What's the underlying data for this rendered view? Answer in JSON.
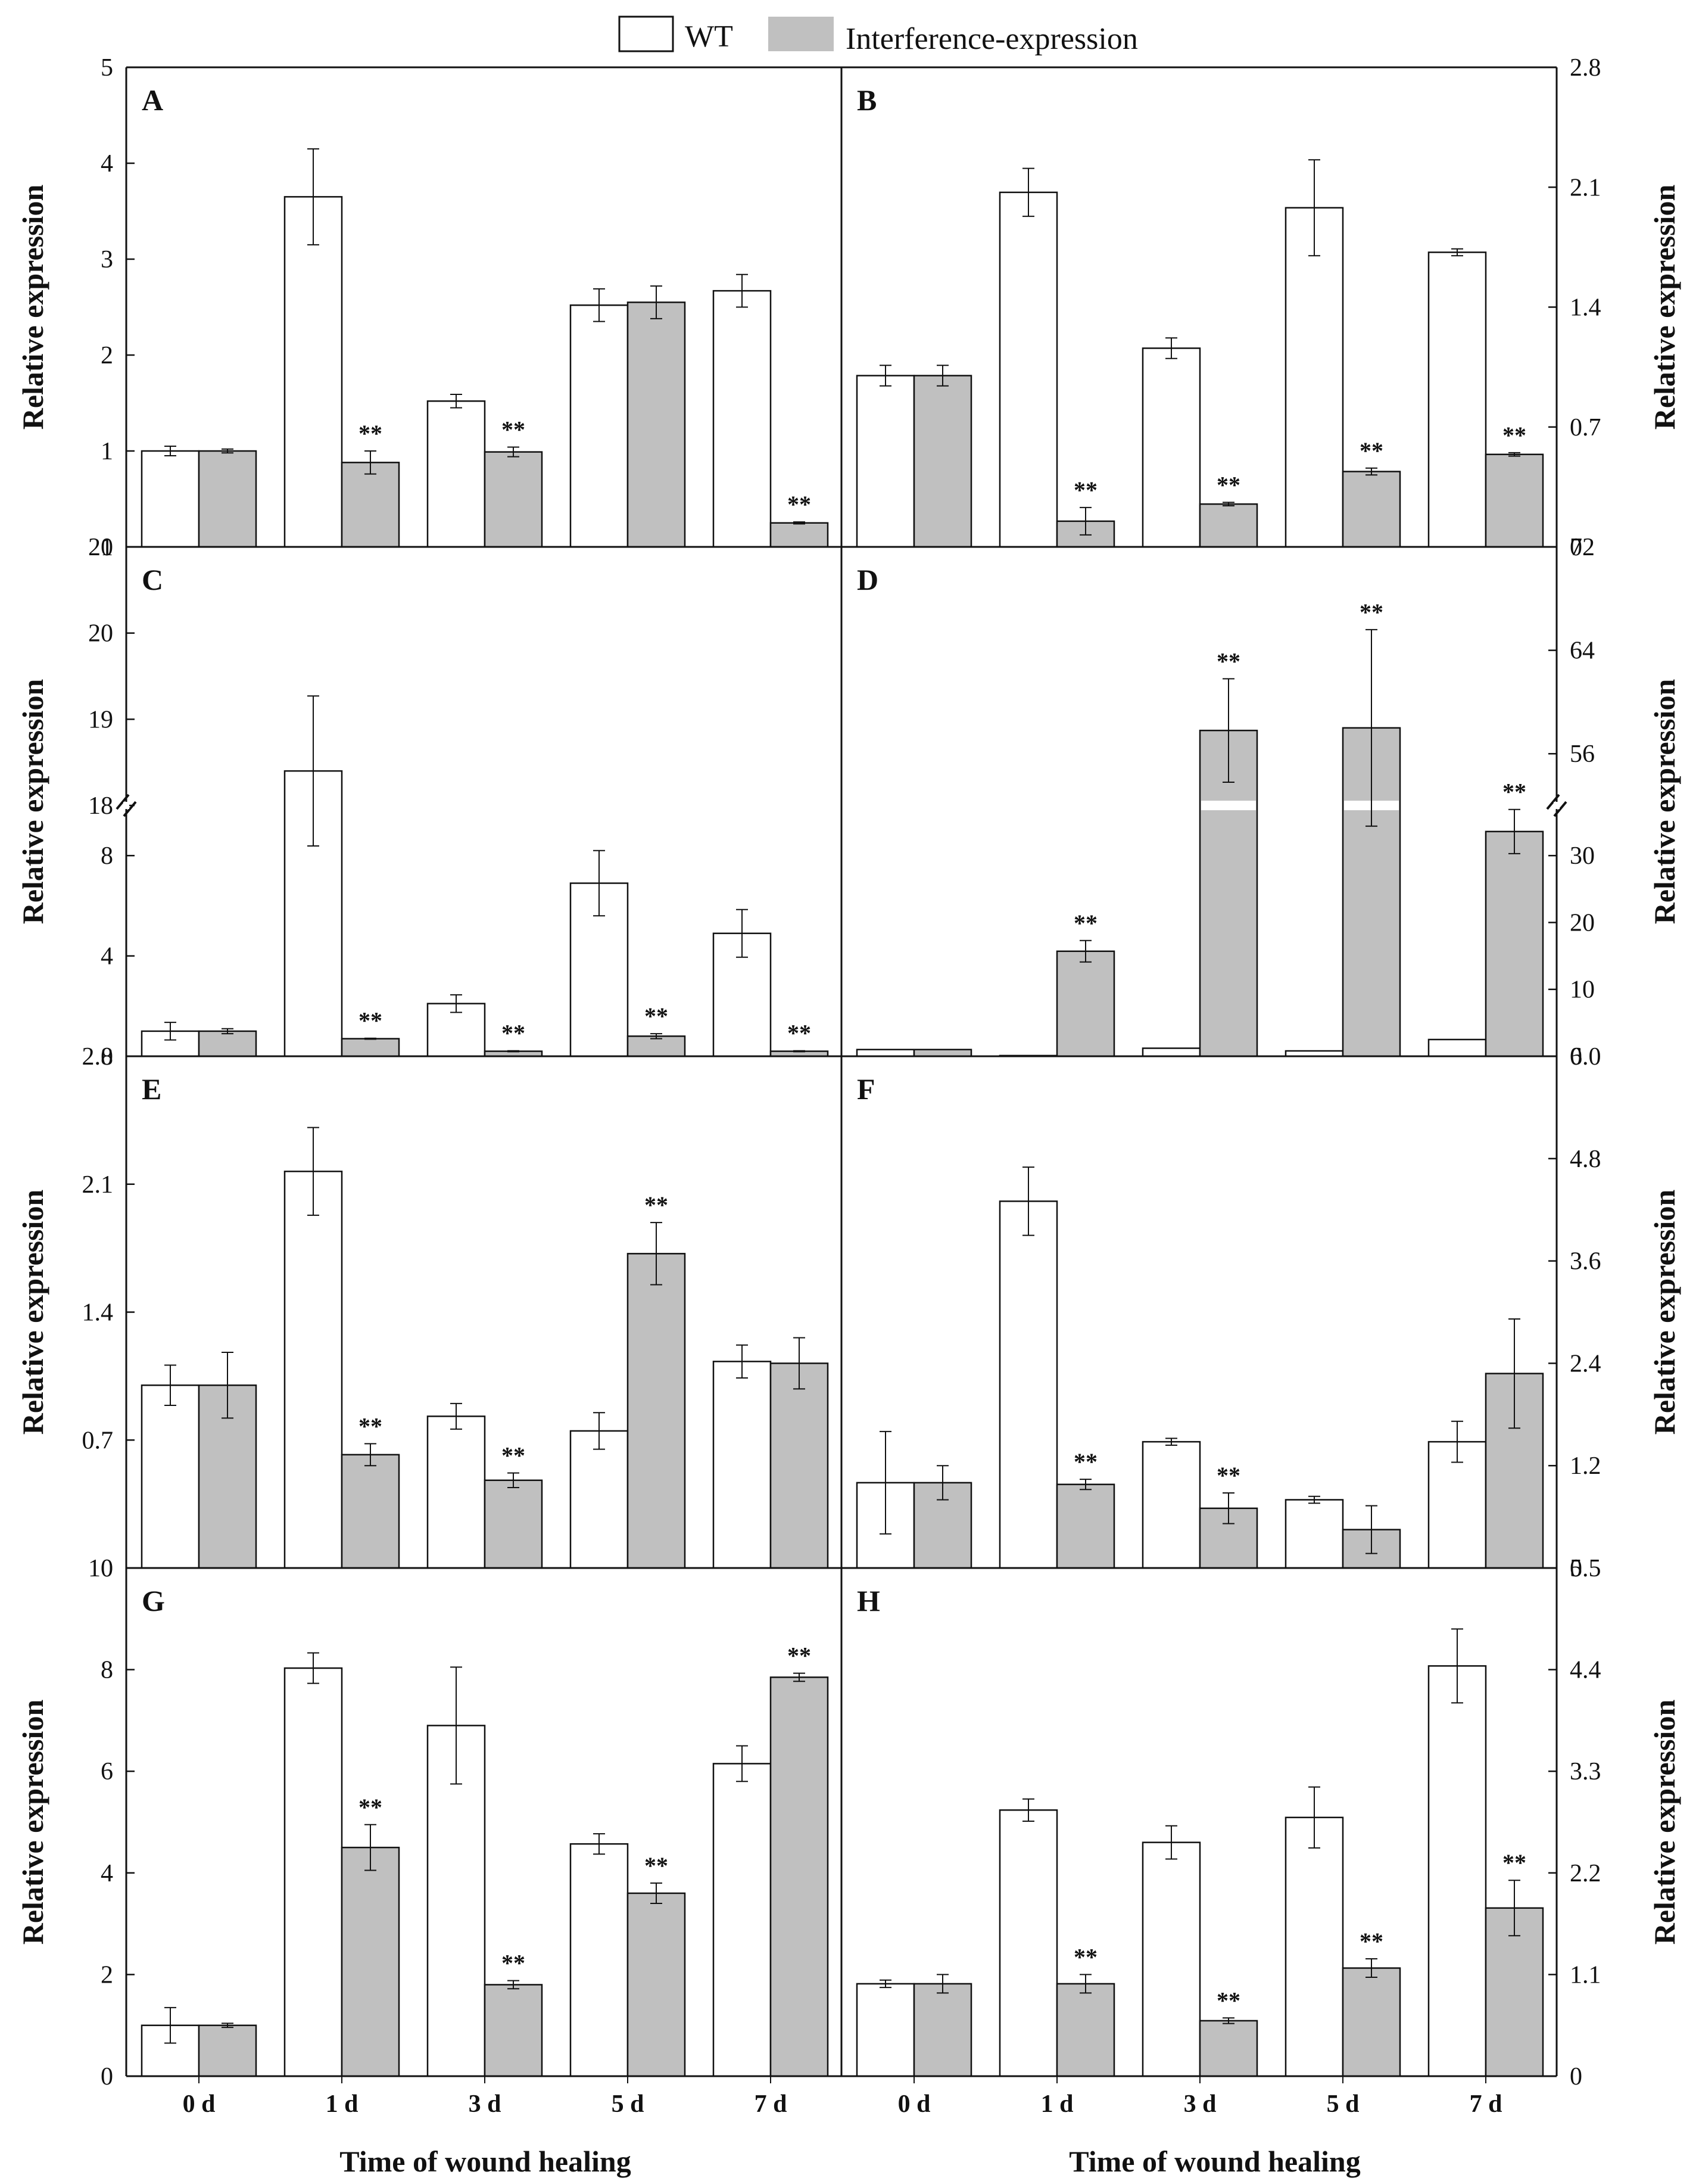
{
  "legend": {
    "wt_label": "WT",
    "ie_label": "Interference-expression",
    "wt_color": "#ffffff",
    "ie_color": "#c0c0c0"
  },
  "x_axis": {
    "categories": [
      "0 d",
      "1 d",
      "3 d",
      "5 d",
      "7 d"
    ],
    "label": "Time of wound healing"
  },
  "significance_marker": "**",
  "chart_data": [
    {
      "type": "bar",
      "panel": "A",
      "axis_side": "left",
      "ylabel": "Relative expression",
      "ylim": [
        0,
        5
      ],
      "yticks": [
        0,
        1,
        2,
        3,
        4,
        5
      ],
      "categories": [
        "0 d",
        "1 d",
        "3 d",
        "5 d",
        "7 d"
      ],
      "series": [
        {
          "name": "WT",
          "values": [
            1.0,
            3.65,
            1.52,
            2.52,
            2.67
          ],
          "errors": [
            0.05,
            0.5,
            0.07,
            0.17,
            0.17
          ],
          "sig": [
            false,
            false,
            false,
            false,
            false
          ]
        },
        {
          "name": "Interference-expression",
          "values": [
            1.0,
            0.88,
            0.99,
            2.55,
            0.25
          ],
          "errors": [
            0.02,
            0.12,
            0.05,
            0.17,
            0.01
          ],
          "sig": [
            false,
            true,
            true,
            false,
            true
          ]
        }
      ]
    },
    {
      "type": "bar",
      "panel": "B",
      "axis_side": "right",
      "ylabel": "Relative expression",
      "ylim": [
        0,
        2.8
      ],
      "yticks": [
        0,
        0.7,
        1.4,
        2.1,
        2.8
      ],
      "ytick_labels": [
        "0",
        "0.7",
        "1.4",
        "2.1",
        "2.8"
      ],
      "categories": [
        "0 d",
        "1 d",
        "3 d",
        "5 d",
        "7 d"
      ],
      "series": [
        {
          "name": "WT",
          "values": [
            1.0,
            2.07,
            1.16,
            1.98,
            1.72
          ],
          "errors": [
            0.06,
            0.14,
            0.06,
            0.28,
            0.02
          ],
          "sig": [
            false,
            false,
            false,
            false,
            false
          ]
        },
        {
          "name": "Interference-expression",
          "values": [
            1.0,
            0.15,
            0.25,
            0.44,
            0.54
          ],
          "errors": [
            0.06,
            0.08,
            0.01,
            0.02,
            0.01
          ],
          "sig": [
            false,
            true,
            true,
            true,
            true
          ]
        }
      ]
    },
    {
      "type": "bar",
      "panel": "C",
      "axis_side": "left",
      "broken_axis": true,
      "ylabel": "Relative expression",
      "ylim_lower": [
        0,
        10
      ],
      "yticks_lower": [
        0,
        4,
        8
      ],
      "ylim_upper": [
        18,
        21
      ],
      "yticks_upper": [
        18,
        19,
        20,
        21
      ],
      "categories": [
        "0 d",
        "1 d",
        "3 d",
        "5 d",
        "7 d"
      ],
      "series": [
        {
          "name": "WT",
          "values": [
            1.0,
            18.4,
            2.1,
            6.9,
            4.9
          ],
          "errors": [
            0.35,
            0.87,
            0.35,
            1.3,
            0.95
          ],
          "sig": [
            false,
            false,
            false,
            false,
            false
          ]
        },
        {
          "name": "Interference-expression",
          "values": [
            1.0,
            0.7,
            0.2,
            0.8,
            0.2
          ],
          "errors": [
            0.1,
            0.02,
            0.02,
            0.1,
            0.02
          ],
          "sig": [
            false,
            true,
            true,
            true,
            true
          ]
        }
      ]
    },
    {
      "type": "bar",
      "panel": "D",
      "axis_side": "right",
      "broken_axis": true,
      "ylabel": "Relative expression",
      "ylim_lower": [
        0,
        37.5
      ],
      "yticks_lower": [
        0,
        10,
        20,
        30
      ],
      "ylim_upper": [
        52,
        72
      ],
      "yticks_upper": [
        56,
        64,
        72
      ],
      "categories": [
        "0 d",
        "1 d",
        "3 d",
        "5 d",
        "7 d"
      ],
      "series": [
        {
          "name": "WT",
          "values": [
            1.0,
            0.1,
            1.2,
            0.8,
            2.5
          ],
          "errors": [
            0,
            0,
            0,
            0,
            0
          ],
          "sig": [
            false,
            false,
            false,
            false,
            false
          ]
        },
        {
          "name": "Interference-expression",
          "values": [
            1.0,
            15.7,
            57.8,
            58.0,
            33.6
          ],
          "errors": [
            0,
            1.6,
            4.0,
            7.6,
            3.3
          ],
          "sig": [
            false,
            true,
            true,
            true,
            true
          ]
        }
      ]
    },
    {
      "type": "bar",
      "panel": "E",
      "axis_side": "left",
      "ylabel": "Relative expression",
      "ylim": [
        0,
        2.8
      ],
      "yticks": [
        0,
        0.7,
        1.4,
        2.1,
        2.8
      ],
      "ytick_labels": [
        "0",
        "0.7",
        "1.4",
        "2.1",
        "2.8"
      ],
      "categories": [
        "0 d",
        "1 d",
        "3 d",
        "5 d",
        "7 d"
      ],
      "series": [
        {
          "name": "WT",
          "values": [
            1.0,
            2.17,
            0.83,
            0.75,
            1.13
          ],
          "errors": [
            0.11,
            0.24,
            0.07,
            0.1,
            0.09
          ],
          "sig": [
            false,
            false,
            false,
            false,
            false
          ]
        },
        {
          "name": "Interference-expression",
          "values": [
            1.0,
            0.62,
            0.48,
            1.72,
            1.12
          ],
          "errors": [
            0.18,
            0.06,
            0.04,
            0.17,
            0.14
          ],
          "sig": [
            false,
            true,
            true,
            true,
            false
          ]
        }
      ]
    },
    {
      "type": "bar",
      "panel": "F",
      "axis_side": "right",
      "ylabel": "Relative expression",
      "ylim": [
        0,
        6.0
      ],
      "yticks": [
        0,
        1.2,
        2.4,
        3.6,
        4.8,
        6.0
      ],
      "ytick_labels": [
        "0",
        "1.2",
        "2.4",
        "3.6",
        "4.8",
        "6.0"
      ],
      "categories": [
        "0 d",
        "1 d",
        "3 d",
        "5 d",
        "7 d"
      ],
      "series": [
        {
          "name": "WT",
          "values": [
            1.0,
            4.3,
            1.48,
            0.8,
            1.48
          ],
          "errors": [
            0.6,
            0.4,
            0.04,
            0.04,
            0.24
          ],
          "sig": [
            false,
            false,
            false,
            false,
            false
          ]
        },
        {
          "name": "Interference-expression",
          "values": [
            1.0,
            0.98,
            0.7,
            0.45,
            2.28
          ],
          "errors": [
            0.2,
            0.06,
            0.18,
            0.28,
            0.64
          ],
          "sig": [
            false,
            true,
            true,
            false,
            false
          ]
        }
      ]
    },
    {
      "type": "bar",
      "panel": "G",
      "axis_side": "left",
      "ylabel": "Relative expression",
      "ylim": [
        0,
        10
      ],
      "yticks": [
        0,
        2,
        4,
        6,
        8,
        10
      ],
      "categories": [
        "0 d",
        "1 d",
        "3 d",
        "5 d",
        "7 d"
      ],
      "series": [
        {
          "name": "WT",
          "values": [
            1.0,
            8.03,
            6.9,
            4.57,
            6.15
          ],
          "errors": [
            0.35,
            0.3,
            1.15,
            0.2,
            0.35
          ],
          "sig": [
            false,
            false,
            false,
            false,
            false
          ]
        },
        {
          "name": "Interference-expression",
          "values": [
            1.0,
            4.5,
            1.8,
            3.6,
            7.85
          ],
          "errors": [
            0.04,
            0.45,
            0.08,
            0.2,
            0.08
          ],
          "sig": [
            false,
            true,
            true,
            true,
            true
          ]
        }
      ]
    },
    {
      "type": "bar",
      "panel": "H",
      "axis_side": "right",
      "ylabel": "Relative expression",
      "ylim": [
        0,
        5.5
      ],
      "yticks": [
        0,
        1.1,
        2.2,
        3.3,
        4.4,
        5.5
      ],
      "ytick_labels": [
        "0",
        "1.1",
        "2.2",
        "3.3",
        "4.4",
        "5.5"
      ],
      "categories": [
        "0 d",
        "1 d",
        "3 d",
        "5 d",
        "7 d"
      ],
      "series": [
        {
          "name": "WT",
          "values": [
            1.0,
            2.88,
            2.53,
            2.8,
            4.44
          ],
          "errors": [
            0.04,
            0.12,
            0.18,
            0.33,
            0.4
          ],
          "sig": [
            false,
            false,
            false,
            false,
            false
          ]
        },
        {
          "name": "Interference-expression",
          "values": [
            1.0,
            1.0,
            0.6,
            1.17,
            1.82
          ],
          "errors": [
            0.1,
            0.1,
            0.03,
            0.1,
            0.3
          ],
          "sig": [
            false,
            true,
            true,
            true,
            true
          ]
        }
      ]
    }
  ]
}
